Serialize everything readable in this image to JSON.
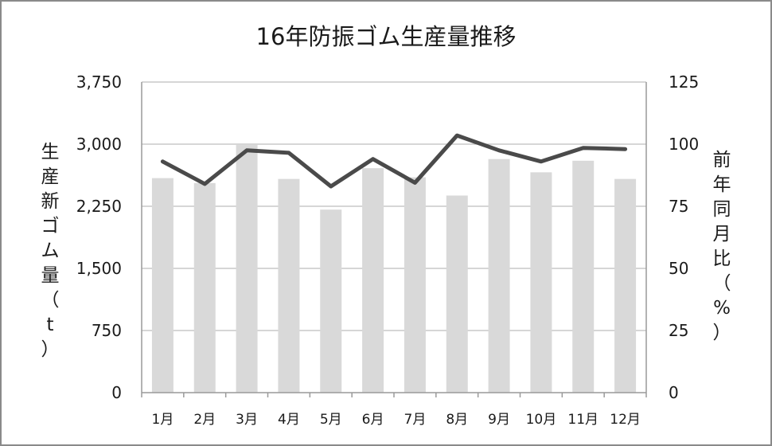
{
  "chart_data": {
    "type": "bar+line",
    "title": "16年防振ゴム生産量推移",
    "categories": [
      "1月",
      "2月",
      "3月",
      "4月",
      "5月",
      "6月",
      "7月",
      "8月",
      "9月",
      "10月",
      "11月",
      "12月"
    ],
    "series": [
      {
        "type": "bar",
        "axis": "left",
        "values": [
          2590,
          2530,
          2990,
          2580,
          2210,
          2710,
          2600,
          2380,
          2820,
          2660,
          2800,
          2580
        ]
      },
      {
        "type": "line",
        "axis": "right",
        "values": [
          93,
          84,
          97.5,
          96.5,
          83,
          94,
          84.5,
          103.5,
          97.5,
          93,
          98.5,
          98
        ]
      }
    ],
    "y_left": {
      "label": "生産新ゴム量（t）",
      "min": 0,
      "max": 3750,
      "ticks": [
        "0",
        "750",
        "1,500",
        "2,250",
        "3,000",
        "3,750"
      ]
    },
    "y_right": {
      "label": "前年同月比（%）",
      "min": 0,
      "max": 125,
      "ticks": [
        "0",
        "25",
        "50",
        "75",
        "100",
        "125"
      ]
    },
    "grid": true,
    "legend": "none",
    "colors": {
      "bar": "#d9d9d9",
      "line": "#4a4a4a",
      "grid": "#bdbdbd"
    }
  }
}
